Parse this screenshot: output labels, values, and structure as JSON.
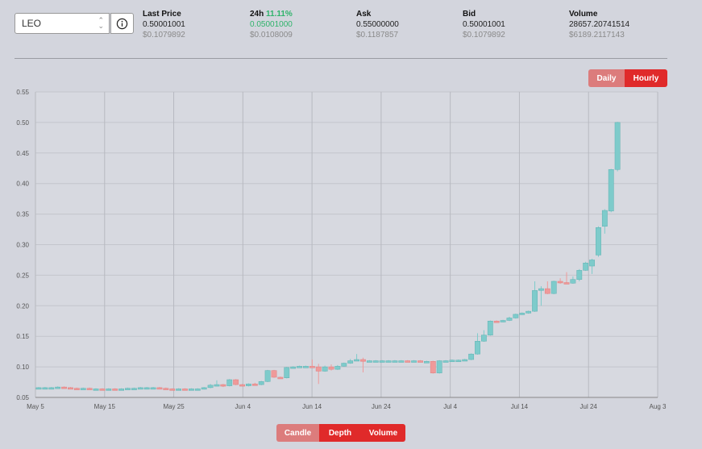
{
  "selector": {
    "value": "LEO"
  },
  "stats": {
    "last_price": {
      "label": "Last Price",
      "value": "0.50001001",
      "usd": "$0.1079892"
    },
    "change24h": {
      "label": "24h",
      "pct": "11.11%",
      "value": "0.05001000",
      "usd": "$0.0108009"
    },
    "ask": {
      "label": "Ask",
      "value": "0.55000000",
      "usd": "$0.1187857"
    },
    "bid": {
      "label": "Bid",
      "value": "0.50001001",
      "usd": "$0.1079892"
    },
    "volume": {
      "label": "Volume",
      "value": "28657.20741514",
      "usd": "$6189.2117143"
    }
  },
  "interval_toggle": {
    "daily": "Daily",
    "hourly": "Hourly",
    "active": "Hourly"
  },
  "view_toggle": {
    "candle": "Candle",
    "depth": "Depth",
    "volume": "Volume",
    "active": "Candle"
  },
  "colors": {
    "up": "#7ecbcb",
    "down": "#ef9a9a",
    "accent": "#e02a2a",
    "accent_inactive": "#dc7c7c",
    "positive": "#2fb36b"
  },
  "chart_data": {
    "type": "candlestick",
    "y_ticks": [
      "0.05",
      "0.10",
      "0.15",
      "0.20",
      "0.25",
      "0.30",
      "0.35",
      "0.40",
      "0.45",
      "0.50",
      "0.55"
    ],
    "ylim": [
      0.05,
      0.55
    ],
    "x_ticks": [
      {
        "label": "May 5",
        "day": 0
      },
      {
        "label": "May 15",
        "day": 10
      },
      {
        "label": "May 25",
        "day": 20
      },
      {
        "label": "Jun 4",
        "day": 30
      },
      {
        "label": "Jun 14",
        "day": 40
      },
      {
        "label": "Jun 24",
        "day": 50
      },
      {
        "label": "Jul 4",
        "day": 60
      },
      {
        "label": "Jul 14",
        "day": 70
      },
      {
        "label": "Jul 24",
        "day": 80
      },
      {
        "label": "Aug 3",
        "day": 90
      }
    ],
    "xlim": [
      0,
      90
    ],
    "grid": true,
    "candles": [
      [
        0,
        0.066,
        0.066,
        0.067,
        0.065
      ],
      [
        1,
        0.066,
        0.066,
        0.067,
        0.065
      ],
      [
        2,
        0.065,
        0.066,
        0.067,
        0.064
      ],
      [
        3,
        0.066,
        0.067,
        0.068,
        0.065
      ],
      [
        4,
        0.067,
        0.066,
        0.068,
        0.065
      ],
      [
        5,
        0.066,
        0.065,
        0.067,
        0.064
      ],
      [
        6,
        0.065,
        0.064,
        0.066,
        0.063
      ],
      [
        7,
        0.064,
        0.065,
        0.066,
        0.063
      ],
      [
        8,
        0.065,
        0.064,
        0.066,
        0.063
      ],
      [
        9,
        0.064,
        0.064,
        0.065,
        0.063
      ],
      [
        10,
        0.064,
        0.063,
        0.065,
        0.062
      ],
      [
        11,
        0.063,
        0.064,
        0.065,
        0.062
      ],
      [
        12,
        0.064,
        0.063,
        0.065,
        0.062
      ],
      [
        13,
        0.063,
        0.064,
        0.065,
        0.062
      ],
      [
        14,
        0.064,
        0.065,
        0.066,
        0.063
      ],
      [
        15,
        0.065,
        0.065,
        0.066,
        0.064
      ],
      [
        16,
        0.065,
        0.066,
        0.067,
        0.064
      ],
      [
        17,
        0.066,
        0.066,
        0.067,
        0.065
      ],
      [
        18,
        0.066,
        0.066,
        0.067,
        0.065
      ],
      [
        19,
        0.066,
        0.065,
        0.067,
        0.064
      ],
      [
        20,
        0.065,
        0.064,
        0.066,
        0.063
      ],
      [
        21,
        0.064,
        0.063,
        0.065,
        0.062
      ],
      [
        22,
        0.063,
        0.064,
        0.065,
        0.062
      ],
      [
        23,
        0.064,
        0.063,
        0.065,
        0.062
      ],
      [
        24,
        0.063,
        0.064,
        0.065,
        0.062
      ],
      [
        25,
        0.064,
        0.064,
        0.065,
        0.063
      ],
      [
        26,
        0.064,
        0.066,
        0.067,
        0.063
      ],
      [
        27,
        0.066,
        0.07,
        0.072,
        0.065
      ],
      [
        28,
        0.07,
        0.071,
        0.078,
        0.068
      ],
      [
        29,
        0.071,
        0.069,
        0.072,
        0.067
      ],
      [
        30,
        0.069,
        0.079,
        0.08,
        0.068
      ],
      [
        31,
        0.079,
        0.071,
        0.08,
        0.07
      ],
      [
        32,
        0.071,
        0.069,
        0.072,
        0.068
      ],
      [
        33,
        0.069,
        0.072,
        0.073,
        0.068
      ],
      [
        34,
        0.072,
        0.071,
        0.074,
        0.07
      ],
      [
        35,
        0.071,
        0.076,
        0.077,
        0.07
      ],
      [
        36,
        0.076,
        0.094,
        0.095,
        0.075
      ],
      [
        37,
        0.094,
        0.083,
        0.095,
        0.082
      ],
      [
        38,
        0.083,
        0.082,
        0.084,
        0.081
      ],
      [
        39,
        0.082,
        0.099,
        0.1,
        0.081
      ],
      [
        40,
        0.099,
        0.1,
        0.101,
        0.098
      ],
      [
        41,
        0.1,
        0.101,
        0.102,
        0.099
      ],
      [
        42,
        0.101,
        0.101,
        0.102,
        0.1
      ],
      [
        43,
        0.101,
        0.1,
        0.112,
        0.099
      ],
      [
        44,
        0.1,
        0.093,
        0.105,
        0.072
      ],
      [
        45,
        0.093,
        0.1,
        0.102,
        0.092
      ],
      [
        46,
        0.1,
        0.096,
        0.104,
        0.094
      ],
      [
        47,
        0.096,
        0.101,
        0.103,
        0.095
      ],
      [
        48,
        0.101,
        0.106,
        0.107,
        0.1
      ],
      [
        49,
        0.106,
        0.11,
        0.113,
        0.105
      ],
      [
        50,
        0.11,
        0.112,
        0.121,
        0.11
      ],
      [
        51,
        0.112,
        0.109,
        0.115,
        0.091
      ],
      [
        52,
        0.109,
        0.11,
        0.111,
        0.108
      ],
      [
        53,
        0.11,
        0.11,
        0.111,
        0.109
      ],
      [
        54,
        0.11,
        0.11,
        0.111,
        0.109
      ],
      [
        55,
        0.11,
        0.11,
        0.111,
        0.109
      ],
      [
        56,
        0.11,
        0.11,
        0.111,
        0.109
      ],
      [
        57,
        0.11,
        0.11,
        0.111,
        0.109
      ],
      [
        58,
        0.11,
        0.109,
        0.111,
        0.108
      ],
      [
        59,
        0.109,
        0.11,
        0.111,
        0.108
      ],
      [
        60,
        0.11,
        0.109,
        0.111,
        0.108
      ],
      [
        61,
        0.109,
        0.109,
        0.11,
        0.108
      ],
      [
        62,
        0.109,
        0.09,
        0.11,
        0.089
      ],
      [
        63,
        0.09,
        0.11,
        0.111,
        0.089
      ],
      [
        64,
        0.11,
        0.11,
        0.111,
        0.109
      ],
      [
        65,
        0.11,
        0.111,
        0.112,
        0.109
      ],
      [
        66,
        0.111,
        0.111,
        0.112,
        0.11
      ],
      [
        67,
        0.111,
        0.112,
        0.113,
        0.11
      ],
      [
        68,
        0.112,
        0.121,
        0.122,
        0.111
      ],
      [
        69,
        0.121,
        0.142,
        0.155,
        0.12
      ],
      [
        70,
        0.142,
        0.152,
        0.16,
        0.141
      ],
      [
        71,
        0.152,
        0.175,
        0.176,
        0.151
      ],
      [
        72,
        0.175,
        0.174,
        0.176,
        0.173
      ],
      [
        73,
        0.174,
        0.176,
        0.177,
        0.173
      ],
      [
        74,
        0.176,
        0.18,
        0.182,
        0.175
      ],
      [
        75,
        0.18,
        0.186,
        0.187,
        0.179
      ],
      [
        76,
        0.186,
        0.188,
        0.189,
        0.185
      ],
      [
        77,
        0.188,
        0.191,
        0.192,
        0.187
      ],
      [
        78,
        0.191,
        0.225,
        0.24,
        0.19
      ],
      [
        79,
        0.225,
        0.228,
        0.232,
        0.2
      ],
      [
        80,
        0.228,
        0.22,
        0.24,
        0.219
      ],
      [
        81,
        0.22,
        0.24,
        0.241,
        0.219
      ],
      [
        82,
        0.24,
        0.238,
        0.245,
        0.236
      ],
      [
        83,
        0.238,
        0.237,
        0.255,
        0.236
      ],
      [
        84,
        0.237,
        0.243,
        0.248,
        0.236
      ],
      [
        85,
        0.243,
        0.258,
        0.26,
        0.24
      ],
      [
        86,
        0.258,
        0.27,
        0.272,
        0.257
      ],
      [
        87,
        0.265,
        0.275,
        0.277,
        0.252
      ],
      [
        88,
        0.283,
        0.328,
        0.33,
        0.28
      ],
      [
        89,
        0.33,
        0.356,
        0.358,
        0.318
      ],
      [
        90,
        0.355,
        0.423,
        0.424,
        0.353
      ],
      [
        91,
        0.423,
        0.5,
        0.501,
        0.42
      ]
    ]
  }
}
